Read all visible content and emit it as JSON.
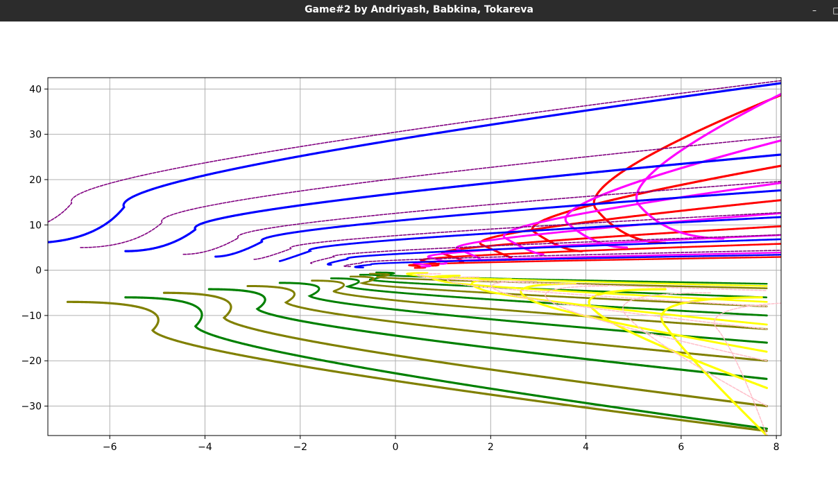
{
  "window": {
    "title": "Game#2 by Andriyash, Babkina, Tokareva",
    "buttons": [
      {
        "name": "minimize",
        "glyph": "–"
      },
      {
        "name": "maximize",
        "glyph": "□"
      }
    ]
  },
  "chart_data": {
    "type": "scatter",
    "title": "",
    "xlabel": "",
    "ylabel": "",
    "xlim": [
      -7.3,
      8.1
    ],
    "ylim": [
      -36.5,
      42.5
    ],
    "xticks": [
      -6,
      -4,
      -2,
      0,
      2,
      4,
      6,
      8
    ],
    "yticks": [
      -30,
      -20,
      -10,
      0,
      10,
      20,
      30,
      40
    ],
    "xtick_labels": [
      "−6",
      "−4",
      "−2",
      "0",
      "2",
      "4",
      "6",
      "8"
    ],
    "ytick_labels": [
      "−30",
      "−20",
      "−10",
      "0",
      "10",
      "20",
      "30",
      "40"
    ],
    "grid": true,
    "legend": null,
    "description_of_marks": "Families of parabolic trajectories: upper/right half (blue, purple, red, magenta), lower/left half (green, olive, yellow, pink), symmetric about the origin.",
    "series": [
      {
        "color": "#ff0000",
        "marker": "dot",
        "curves": [
          {
            "y_start": 6.0,
            "y_end": 40.8,
            "x_vertex": 4.2
          },
          {
            "y_start": 4.2,
            "y_end": 24.0,
            "x_vertex": 2.9
          },
          {
            "y_start": 2.8,
            "y_end": 16.0,
            "x_vertex": 1.8
          },
          {
            "y_start": 1.8,
            "y_end": 10.0,
            "x_vertex": 1.0
          },
          {
            "y_start": 1.0,
            "y_end": 6.0,
            "x_vertex": 0.55
          },
          {
            "y_start": 0.5,
            "y_end": 3.0,
            "x_vertex": 0.3
          }
        ]
      },
      {
        "color": "#ff00ff",
        "marker": "dot",
        "curves": [
          {
            "y_start": 7.0,
            "y_end": 41.5,
            "x_vertex": 5.1
          },
          {
            "y_start": 5.0,
            "y_end": 30.0,
            "x_vertex": 3.6
          },
          {
            "y_start": 3.5,
            "y_end": 20.0,
            "x_vertex": 2.3
          },
          {
            "y_start": 2.3,
            "y_end": 13.0,
            "x_vertex": 1.3
          },
          {
            "y_start": 1.4,
            "y_end": 8.0,
            "x_vertex": 0.7
          },
          {
            "y_start": 0.8,
            "y_end": 4.0,
            "x_vertex": 0.4
          }
        ]
      },
      {
        "color": "#0000ff",
        "marker": "dot",
        "curves": [
          {
            "y_start": 6.0,
            "y_end": 42.0,
            "x_vertex": -5.7
          },
          {
            "y_start": 4.2,
            "y_end": 26.0,
            "x_vertex": -4.2
          },
          {
            "y_start": 3.0,
            "y_end": 18.0,
            "x_vertex": -2.8
          },
          {
            "y_start": 2.0,
            "y_end": 12.0,
            "x_vertex": -1.8
          },
          {
            "y_start": 1.2,
            "y_end": 7.0,
            "x_vertex": -1.0
          },
          {
            "y_start": 0.6,
            "y_end": 3.5,
            "x_vertex": -0.5
          }
        ]
      },
      {
        "color": "#800080",
        "marker": "triangle",
        "curves": [
          {
            "y_start": 7.0,
            "y_end": 42.5,
            "x_vertex": -6.8
          },
          {
            "y_start": 5.0,
            "y_end": 30.0,
            "x_vertex": -4.9
          },
          {
            "y_start": 3.5,
            "y_end": 20.0,
            "x_vertex": -3.3
          },
          {
            "y_start": 2.4,
            "y_end": 13.0,
            "x_vertex": -2.2
          },
          {
            "y_start": 1.5,
            "y_end": 8.0,
            "x_vertex": -1.3
          },
          {
            "y_start": 0.8,
            "y_end": 4.5,
            "x_vertex": -0.7
          }
        ]
      },
      {
        "color": "#008000",
        "marker": "dot",
        "curves": [
          {
            "y_start": -6.0,
            "y_end": -35.0,
            "x_vertex": -4.2
          },
          {
            "y_start": -4.2,
            "y_end": -24.0,
            "x_vertex": -2.9
          },
          {
            "y_start": -2.8,
            "y_end": -16.0,
            "x_vertex": -1.8
          },
          {
            "y_start": -1.8,
            "y_end": -10.0,
            "x_vertex": -1.0
          },
          {
            "y_start": -1.0,
            "y_end": -6.0,
            "x_vertex": -0.55
          },
          {
            "y_start": -0.5,
            "y_end": -3.0,
            "x_vertex": -0.3
          }
        ]
      },
      {
        "color": "#808000",
        "marker": "dot",
        "curves": [
          {
            "y_start": -7.0,
            "y_end": -35.5,
            "x_vertex": -5.1
          },
          {
            "y_start": -5.0,
            "y_end": -30.0,
            "x_vertex": -3.6
          },
          {
            "y_start": -3.5,
            "y_end": -20.0,
            "x_vertex": -2.3
          },
          {
            "y_start": -2.3,
            "y_end": -13.0,
            "x_vertex": -1.3
          },
          {
            "y_start": -1.4,
            "y_end": -8.0,
            "x_vertex": -0.7
          },
          {
            "y_start": -0.8,
            "y_end": -4.0,
            "x_vertex": -0.4
          }
        ]
      },
      {
        "color": "#ffff00",
        "marker": "dot",
        "curves": [
          {
            "y_start": -6.0,
            "y_end": -36.5,
            "x_vertex": 5.7
          },
          {
            "y_start": -4.2,
            "y_end": -26.0,
            "x_vertex": 4.2
          },
          {
            "y_start": -3.0,
            "y_end": -18.0,
            "x_vertex": 2.8
          },
          {
            "y_start": -2.0,
            "y_end": -12.0,
            "x_vertex": 1.8
          },
          {
            "y_start": -1.2,
            "y_end": -7.0,
            "x_vertex": 1.0
          },
          {
            "y_start": -0.6,
            "y_end": -3.5,
            "x_vertex": 0.5
          }
        ]
      },
      {
        "color": "#ffc0cb",
        "marker": "triangle",
        "curves": [
          {
            "y_start": -7.0,
            "y_end": -36.5,
            "x_vertex": 6.8
          },
          {
            "y_start": -5.0,
            "y_end": -30.0,
            "x_vertex": 4.9
          },
          {
            "y_start": -3.5,
            "y_end": -20.0,
            "x_vertex": 3.3
          },
          {
            "y_start": -2.4,
            "y_end": -13.0,
            "x_vertex": 2.2
          },
          {
            "y_start": -1.5,
            "y_end": -8.0,
            "x_vertex": 1.3
          },
          {
            "y_start": -0.8,
            "y_end": -4.5,
            "x_vertex": 0.7
          }
        ]
      }
    ]
  }
}
